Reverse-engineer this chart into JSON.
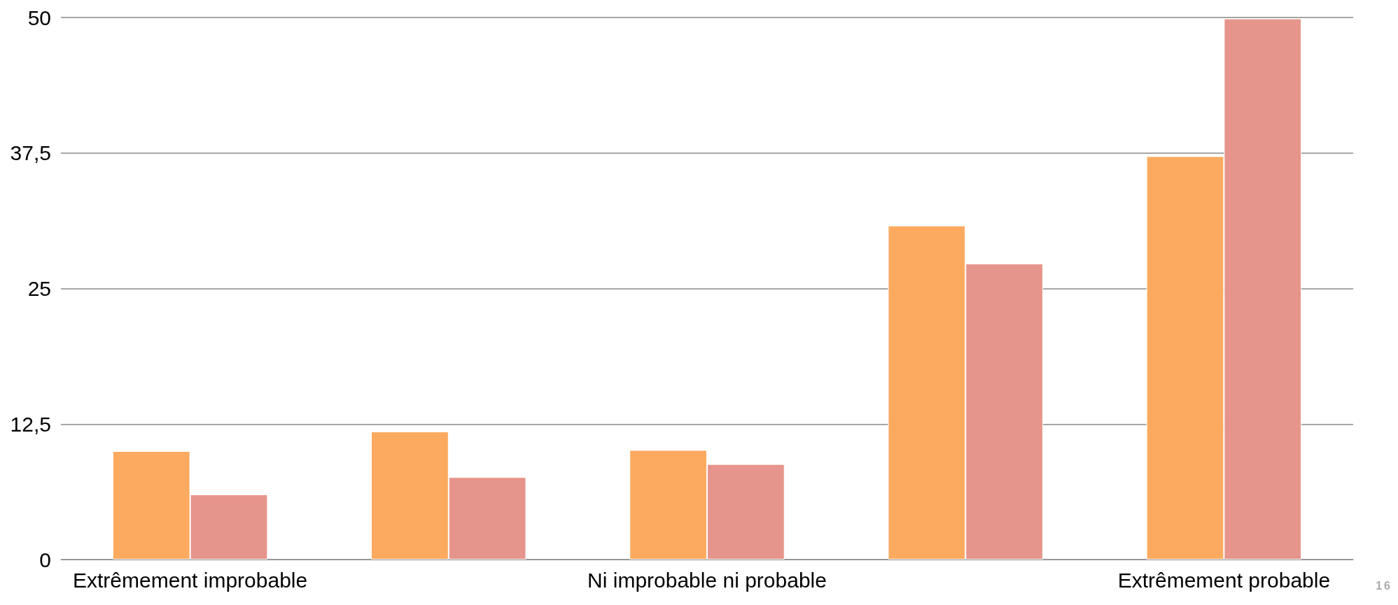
{
  "chart_data": {
    "type": "bar",
    "categories": [
      "Extrêmement improbable",
      null,
      "Ni improbable ni probable",
      null,
      "Extrêmement probable"
    ],
    "series": [
      {
        "color": "#fcaa5f",
        "values": [
          10,
          11.8,
          10.1,
          30.8,
          37.2
        ]
      },
      {
        "color": "#e6958c",
        "values": [
          6,
          7.6,
          8.8,
          27.3,
          49.9
        ]
      }
    ],
    "ylim": [
      0,
      50
    ],
    "yticks": [
      0,
      {
        "value": 12.5,
        "label": "12,5"
      },
      25,
      {
        "value": 37.5,
        "label": "37,5"
      },
      50
    ],
    "grid": "y",
    "annotations": [
      "16"
    ]
  }
}
